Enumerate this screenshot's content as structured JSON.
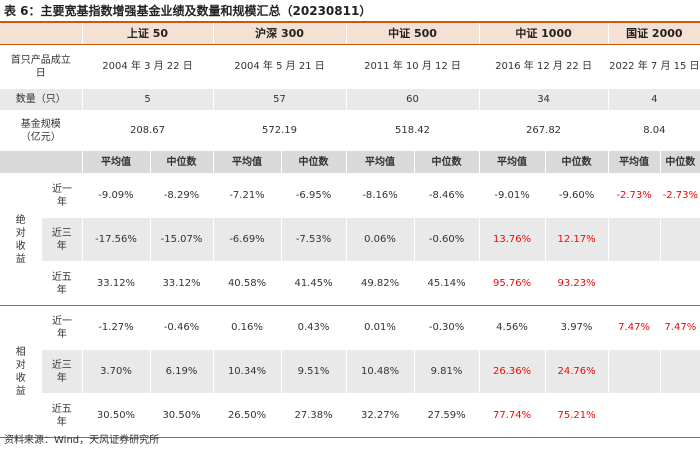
{
  "title": "表 6：主要宽基指数增强基金业绩及数量和规模汇总（20230811）",
  "indices": [
    "上证 50",
    "沪深 300",
    "中证 500",
    "中证 1000",
    "国证 2000"
  ],
  "info": {
    "inception_label": "首只产品成立日",
    "inception": [
      "2004 年 3 月 22 日",
      "2004 年 5 月 21 日",
      "2011 年 10 月 12 日",
      "2016 年 12 月 22 日",
      "2022 年 7 月 15 日"
    ],
    "count_label": "数量（只）",
    "count": [
      "5",
      "57",
      "60",
      "34",
      "4"
    ],
    "size_label": "基金规模（亿元）",
    "size": [
      "208.67",
      "572.19",
      "518.42",
      "267.82",
      "8.04"
    ]
  },
  "stat_headers": {
    "mean": "平均值",
    "median": "中位数"
  },
  "groups": [
    {
      "label": "绝对收益",
      "rows": [
        {
          "period": "近一年",
          "values": [
            "-9.09%",
            "-8.29%",
            "-7.21%",
            "-6.95%",
            "-8.16%",
            "-8.46%",
            "-9.01%",
            "-9.60%",
            "-2.73%",
            "-2.73%"
          ],
          "red": [
            false,
            false,
            false,
            false,
            false,
            false,
            false,
            false,
            true,
            true
          ]
        },
        {
          "period": "近三年",
          "values": [
            "-17.56%",
            "-15.07%",
            "-6.69%",
            "-7.53%",
            "0.06%",
            "-0.60%",
            "13.76%",
            "12.17%",
            "",
            ""
          ],
          "red": [
            false,
            false,
            false,
            false,
            false,
            false,
            true,
            true,
            false,
            false
          ]
        },
        {
          "period": "近五年",
          "values": [
            "33.12%",
            "33.12%",
            "40.58%",
            "41.45%",
            "49.82%",
            "45.14%",
            "95.76%",
            "93.23%",
            "",
            ""
          ],
          "red": [
            false,
            false,
            false,
            false,
            false,
            false,
            true,
            true,
            false,
            false
          ]
        }
      ]
    },
    {
      "label": "相对收益",
      "rows": [
        {
          "period": "近一年",
          "values": [
            "-1.27%",
            "-0.46%",
            "0.16%",
            "0.43%",
            "0.01%",
            "-0.30%",
            "4.56%",
            "3.97%",
            "7.47%",
            "7.47%"
          ],
          "red": [
            false,
            false,
            false,
            false,
            false,
            false,
            false,
            false,
            true,
            true
          ]
        },
        {
          "period": "近三年",
          "values": [
            "3.70%",
            "6.19%",
            "10.34%",
            "9.51%",
            "10.48%",
            "9.81%",
            "26.36%",
            "24.76%",
            "",
            ""
          ],
          "red": [
            false,
            false,
            false,
            false,
            false,
            false,
            true,
            true,
            false,
            false
          ]
        },
        {
          "period": "近五年",
          "values": [
            "30.50%",
            "30.50%",
            "26.50%",
            "27.38%",
            "32.27%",
            "27.59%",
            "77.74%",
            "75.21%",
            "",
            ""
          ],
          "red": [
            false,
            false,
            false,
            false,
            false,
            false,
            true,
            true,
            false,
            false
          ]
        }
      ]
    }
  ],
  "source": "资料来源：Wind，天风证券研究所",
  "colors": {
    "accent": "#c55a11",
    "header_bg": "#f4e1d3",
    "highlight": "#ff0000"
  }
}
